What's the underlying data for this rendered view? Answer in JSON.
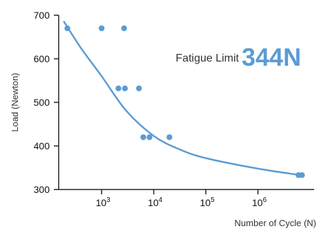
{
  "chart_data": {
    "type": "scatter",
    "xlabel": "Number of Cycle (N)",
    "ylabel": "Load (Newton)",
    "x_scale": "log",
    "xlim": [
      150,
      12000000
    ],
    "ylim": [
      300,
      700
    ],
    "x_ticks": [
      {
        "value": 1000,
        "base": "10",
        "exp": "3"
      },
      {
        "value": 10000,
        "base": "10",
        "exp": "4"
      },
      {
        "value": 100000,
        "base": "10",
        "exp": "5"
      },
      {
        "value": 1000000,
        "base": "10",
        "exp": "6"
      }
    ],
    "y_ticks": [
      300,
      400,
      500,
      600,
      700
    ],
    "grid": false,
    "annotation": {
      "label": "Fatigue Limit",
      "value": "344N"
    },
    "series": [
      {
        "kind": "points",
        "color": "#5b9bd5",
        "points": [
          {
            "x": 220,
            "y": 670
          },
          {
            "x": 1000,
            "y": 670
          },
          {
            "x": 2700,
            "y": 670
          },
          {
            "x": 2100,
            "y": 532
          },
          {
            "x": 2800,
            "y": 532
          },
          {
            "x": 5200,
            "y": 532
          },
          {
            "x": 6300,
            "y": 420
          },
          {
            "x": 8300,
            "y": 420
          },
          {
            "x": 20000,
            "y": 420
          },
          {
            "x": 6000000,
            "y": 333
          },
          {
            "x": 7000000,
            "y": 333
          }
        ]
      },
      {
        "kind": "curve",
        "color": "#5b9bd5",
        "points": [
          {
            "x": 190,
            "y": 685
          },
          {
            "x": 400,
            "y": 625
          },
          {
            "x": 1000,
            "y": 560
          },
          {
            "x": 3000,
            "y": 480
          },
          {
            "x": 10000,
            "y": 423
          },
          {
            "x": 30000,
            "y": 393
          },
          {
            "x": 100000,
            "y": 372
          },
          {
            "x": 1000000,
            "y": 348
          },
          {
            "x": 6500000,
            "y": 333
          }
        ]
      }
    ],
    "colors": {
      "accent": "#5b9bd5",
      "axis": "#222222"
    }
  }
}
